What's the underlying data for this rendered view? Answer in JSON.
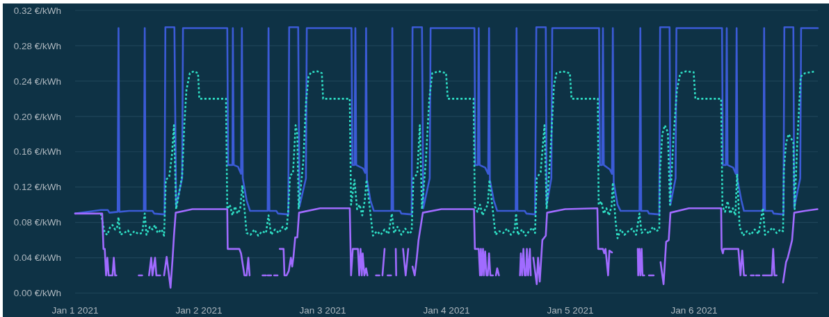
{
  "chart_data": {
    "type": "line",
    "xlim": [
      "2021-01-01T00:00",
      "2021-01-07T00:00"
    ],
    "xticks": [
      {
        "value": "2021-01-01",
        "label": "Jan 1 2021"
      },
      {
        "value": "2021-01-02",
        "label": "Jan 2 2021"
      },
      {
        "value": "2021-01-03",
        "label": "Jan 3 2021"
      },
      {
        "value": "2021-01-04",
        "label": "Jan 4 2021"
      },
      {
        "value": "2021-01-05",
        "label": "Jan 5 2021"
      },
      {
        "value": "2021-01-06",
        "label": "Jan 6 2021"
      }
    ],
    "ylim": [
      0,
      0.32
    ],
    "yticks": [
      {
        "value": 0,
        "label": "0.00 €/kWh"
      },
      {
        "value": 0.04,
        "label": "0.04 €/kWh"
      },
      {
        "value": 0.08,
        "label": "0.08 €/kWh"
      },
      {
        "value": 0.12,
        "label": "0.12 €/kWh"
      },
      {
        "value": 0.16,
        "label": "0.16 €/kWh"
      },
      {
        "value": 0.2,
        "label": "0.20 €/kWh"
      },
      {
        "value": 0.24,
        "label": "0.24 €/kWh"
      },
      {
        "value": 0.28,
        "label": "0.28 €/kWh"
      },
      {
        "value": 0.32,
        "label": "0.32 €/kWh"
      }
    ],
    "grid": "y",
    "series": [
      {
        "color": "#3b5bd6",
        "x": [
          "2021-01-01T00:00",
          "2021-01-01T05:00",
          "2021-01-01T06:20",
          "2021-01-01T06:40",
          "2021-01-01T08:15",
          "2021-01-01T08:25",
          "2021-01-01T08:35",
          "2021-01-01T10:30",
          "2021-01-01T13:20",
          "2021-01-01T13:30",
          "2021-01-01T13:40",
          "2021-01-01T15:00",
          "2021-01-01T15:20",
          "2021-01-01T17:20",
          "2021-01-01T17:30",
          "2021-01-01T19:15",
          "2021-01-01T19:35",
          "2021-01-01T20:45",
          "2021-01-01T20:55",
          "2021-01-02T05:30",
          "2021-01-02T05:40",
          "2021-01-02T06:30",
          "2021-01-02T06:35",
          "2021-01-02T06:45",
          "2021-01-02T07:35",
          "2021-01-02T08:10",
          "2021-01-02T08:20",
          "2021-01-02T08:30",
          "2021-01-02T09:15",
          "2021-01-02T09:55",
          "2021-01-02T13:20",
          "2021-01-02T13:30",
          "2021-01-02T13:40",
          "2021-01-02T15:00",
          "2021-01-02T15:20",
          "2021-01-02T17:20",
          "2021-01-02T17:30",
          "2021-01-02T19:15",
          "2021-01-02T19:30",
          "2021-01-02T20:45",
          "2021-01-02T20:55",
          "2021-01-03T05:35",
          "2021-01-03T05:45",
          "2021-01-03T06:10",
          "2021-01-03T06:20",
          "2021-01-03T06:30",
          "2021-01-03T07:50",
          "2021-01-03T08:15",
          "2021-01-03T08:25",
          "2021-01-03T08:35",
          "2021-01-03T09:15",
          "2021-01-03T09:55",
          "2021-01-03T13:20",
          "2021-01-03T13:30",
          "2021-01-03T13:40",
          "2021-01-03T15:00",
          "2021-01-03T15:15",
          "2021-01-03T17:15",
          "2021-01-03T17:25",
          "2021-01-03T19:15",
          "2021-01-03T19:30",
          "2021-01-03T20:45",
          "2021-01-03T20:55",
          "2021-01-04T05:25",
          "2021-01-04T05:35",
          "2021-01-04T06:05",
          "2021-01-04T06:15",
          "2021-01-04T06:25",
          "2021-01-04T07:30",
          "2021-01-04T08:05",
          "2021-01-04T08:15",
          "2021-01-04T08:25",
          "2021-01-04T09:10",
          "2021-01-04T09:50",
          "2021-01-04T13:25",
          "2021-01-04T13:35",
          "2021-01-04T13:45",
          "2021-01-04T15:10",
          "2021-01-04T15:30",
          "2021-01-04T17:10",
          "2021-01-04T17:25",
          "2021-01-04T19:15",
          "2021-01-04T19:25",
          "2021-01-04T20:20",
          "2021-01-04T20:30",
          "2021-01-05T05:35",
          "2021-01-05T05:45",
          "2021-01-05T06:10",
          "2021-01-05T06:20",
          "2021-01-05T06:30",
          "2021-01-05T07:40",
          "2021-01-05T08:05",
          "2021-01-05T08:15",
          "2021-01-05T08:25",
          "2021-01-05T09:10",
          "2021-01-05T09:45",
          "2021-01-05T13:25",
          "2021-01-05T13:35",
          "2021-01-05T13:45",
          "2021-01-05T15:00",
          "2021-01-05T15:15",
          "2021-01-05T17:15",
          "2021-01-05T17:25",
          "2021-01-05T19:15",
          "2021-01-05T19:25",
          "2021-01-05T20:25",
          "2021-01-05T20:35",
          "2021-01-06T05:25",
          "2021-01-06T05:35",
          "2021-01-06T06:10",
          "2021-01-06T06:20",
          "2021-01-06T06:30",
          "2021-01-06T07:35",
          "2021-01-06T08:05",
          "2021-01-06T08:15",
          "2021-01-06T08:25",
          "2021-01-06T09:10",
          "2021-01-06T09:40",
          "2021-01-06T13:25",
          "2021-01-06T13:35",
          "2021-01-06T13:45",
          "2021-01-06T15:10",
          "2021-01-06T15:25",
          "2021-01-06T17:20",
          "2021-01-06T17:30",
          "2021-01-06T19:15",
          "2021-01-06T19:25",
          "2021-01-06T20:35",
          "2021-01-06T20:45",
          "2021-01-07T00:00"
        ],
        "values": [
          0.09,
          0.094,
          0.094,
          0.091,
          0.092,
          0.3,
          0.092,
          0.093,
          0.093,
          0.3,
          0.093,
          0.093,
          0.09,
          0.089,
          0.301,
          0.301,
          0.098,
          0.13,
          0.3,
          0.3,
          0.145,
          0.145,
          0.3,
          0.145,
          0.143,
          0.135,
          0.3,
          0.13,
          0.105,
          0.093,
          0.093,
          0.3,
          0.093,
          0.093,
          0.09,
          0.089,
          0.301,
          0.301,
          0.098,
          0.13,
          0.3,
          0.3,
          0.145,
          0.145,
          0.3,
          0.145,
          0.141,
          0.136,
          0.3,
          0.128,
          0.105,
          0.093,
          0.093,
          0.3,
          0.093,
          0.093,
          0.09,
          0.089,
          0.301,
          0.301,
          0.096,
          0.13,
          0.3,
          0.3,
          0.145,
          0.145,
          0.3,
          0.145,
          0.142,
          0.135,
          0.3,
          0.128,
          0.105,
          0.093,
          0.093,
          0.3,
          0.093,
          0.093,
          0.09,
          0.089,
          0.301,
          0.301,
          0.1,
          0.13,
          0.3,
          0.3,
          0.145,
          0.145,
          0.3,
          0.145,
          0.14,
          0.135,
          0.3,
          0.125,
          0.1,
          0.093,
          0.093,
          0.3,
          0.093,
          0.093,
          0.09,
          0.089,
          0.301,
          0.301,
          0.1,
          0.13,
          0.3,
          0.3,
          0.145,
          0.145,
          0.3,
          0.145,
          0.142,
          0.135,
          0.3,
          0.128,
          0.105,
          0.093,
          0.093,
          0.3,
          0.093,
          0.093,
          0.09,
          0.089,
          0.301,
          0.301,
          0.097,
          0.13,
          0.3,
          0.3
        ]
      },
      {
        "color": "#2fe0c6",
        "line_style": "dotted",
        "x": [
          "2021-01-01T05:00",
          "2021-01-01T05:45",
          "2021-01-01T06:15",
          "2021-01-01T06:45",
          "2021-01-01T07:15",
          "2021-01-01T07:45",
          "2021-01-01T08:10",
          "2021-01-01T08:25",
          "2021-01-01T08:45",
          "2021-01-01T09:30",
          "2021-01-01T10:15",
          "2021-01-01T10:45",
          "2021-01-01T11:30",
          "2021-01-01T12:15",
          "2021-01-01T13:00",
          "2021-01-01T13:30",
          "2021-01-01T13:50",
          "2021-01-01T14:30",
          "2021-01-01T15:00",
          "2021-01-01T15:30",
          "2021-01-01T16:00",
          "2021-01-01T16:45",
          "2021-01-01T17:15",
          "2021-01-01T17:35",
          "2021-01-01T18:15",
          "2021-01-01T18:45",
          "2021-01-01T19:10",
          "2021-01-01T19:35",
          "2021-01-01T20:45",
          "2021-01-01T21:10",
          "2021-01-01T21:35",
          "2021-01-01T22:15",
          "2021-01-01T23:00",
          "2021-01-01T23:50",
          "2021-01-02T00:05",
          "2021-01-02T05:15",
          "2021-01-02T05:30",
          "2021-01-02T06:00",
          "2021-01-02T06:30",
          "2021-01-02T07:00",
          "2021-01-02T07:30",
          "2021-01-02T08:00",
          "2021-01-02T08:25",
          "2021-01-02T09:15",
          "2021-01-02T10:00",
          "2021-01-02T10:45",
          "2021-01-02T11:30",
          "2021-01-02T12:15",
          "2021-01-02T13:00",
          "2021-01-02T13:30",
          "2021-01-02T14:00",
          "2021-01-02T14:45",
          "2021-01-02T15:30",
          "2021-01-02T16:15",
          "2021-01-02T17:00",
          "2021-01-02T17:20",
          "2021-01-02T17:40",
          "2021-01-02T18:15",
          "2021-01-02T18:45",
          "2021-01-02T19:05",
          "2021-01-02T19:20",
          "2021-01-02T20:15",
          "2021-01-02T20:45",
          "2021-01-02T21:15",
          "2021-01-02T21:45",
          "2021-01-02T23:00",
          "2021-01-02T23:50",
          "2021-01-03T00:05",
          "2021-01-03T05:15",
          "2021-01-03T05:30",
          "2021-01-03T06:10",
          "2021-01-03T06:40",
          "2021-01-03T07:10",
          "2021-01-03T07:40",
          "2021-01-03T08:10",
          "2021-01-03T08:30",
          "2021-01-03T09:45",
          "2021-01-03T10:30",
          "2021-01-03T11:15",
          "2021-01-03T12:00",
          "2021-01-03T12:45",
          "2021-01-03T13:25",
          "2021-01-03T13:50",
          "2021-01-03T14:30",
          "2021-01-03T15:15",
          "2021-01-03T16:00",
          "2021-01-03T16:45",
          "2021-01-03T17:15",
          "2021-01-03T17:35",
          "2021-01-03T18:20",
          "2021-01-03T18:50",
          "2021-01-03T19:15",
          "2021-01-03T20:00",
          "2021-01-03T20:40",
          "2021-01-03T21:15",
          "2021-01-03T22:30",
          "2021-01-03T23:55",
          "2021-01-04T00:15",
          "2021-01-04T05:15",
          "2021-01-04T05:30",
          "2021-01-04T06:00",
          "2021-01-04T06:30",
          "2021-01-04T07:00",
          "2021-01-04T07:30",
          "2021-01-04T08:00",
          "2021-01-04T08:20",
          "2021-01-04T09:30",
          "2021-01-04T10:15",
          "2021-01-04T11:00",
          "2021-01-04T11:45",
          "2021-01-04T12:30",
          "2021-01-04T13:10",
          "2021-01-04T13:30",
          "2021-01-04T13:50",
          "2021-01-04T14:40",
          "2021-01-04T15:20",
          "2021-01-04T16:00",
          "2021-01-04T16:40",
          "2021-01-04T17:10",
          "2021-01-04T17:30",
          "2021-01-04T18:15",
          "2021-01-04T19:00",
          "2021-01-04T19:25",
          "2021-01-04T20:10",
          "2021-01-04T20:50",
          "2021-01-04T21:20",
          "2021-01-04T22:30",
          "2021-01-04T23:55",
          "2021-01-05T00:15",
          "2021-01-05T05:20",
          "2021-01-05T05:30",
          "2021-01-05T06:00",
          "2021-01-05T06:30",
          "2021-01-05T07:00",
          "2021-01-05T07:30",
          "2021-01-05T08:00",
          "2021-01-05T08:15",
          "2021-01-05T08:45",
          "2021-01-05T09:10",
          "2021-01-05T09:45",
          "2021-01-05T10:30",
          "2021-01-05T11:15",
          "2021-01-05T12:00",
          "2021-01-05T12:45",
          "2021-01-05T13:25",
          "2021-01-05T13:50",
          "2021-01-05T14:30",
          "2021-01-05T15:15",
          "2021-01-05T16:00",
          "2021-01-05T16:40",
          "2021-01-05T17:15",
          "2021-01-05T17:25",
          "2021-01-05T17:50",
          "2021-01-05T18:20",
          "2021-01-05T18:55",
          "2021-01-05T19:20",
          "2021-01-05T20:00",
          "2021-01-05T20:40",
          "2021-01-05T21:20",
          "2021-01-05T22:30",
          "2021-01-05T23:55",
          "2021-01-06T00:15",
          "2021-01-06T05:15",
          "2021-01-06T05:30",
          "2021-01-06T06:00",
          "2021-01-06T06:30",
          "2021-01-06T07:00",
          "2021-01-06T07:30",
          "2021-01-06T08:00",
          "2021-01-06T08:20",
          "2021-01-06T08:50",
          "2021-01-06T09:30",
          "2021-01-06T10:15",
          "2021-01-06T11:00",
          "2021-01-06T11:45",
          "2021-01-06T12:30",
          "2021-01-06T13:20",
          "2021-01-06T13:45",
          "2021-01-06T14:30",
          "2021-01-06T15:15",
          "2021-01-06T16:00",
          "2021-01-06T16:45",
          "2021-01-06T17:15",
          "2021-01-06T17:25",
          "2021-01-06T17:50",
          "2021-01-06T18:20",
          "2021-01-06T18:50",
          "2021-01-06T19:15",
          "2021-01-06T19:30",
          "2021-01-06T20:00",
          "2021-01-06T20:40",
          "2021-01-06T21:30",
          "2021-01-06T22:30",
          "2021-01-06T23:30"
        ],
        "values": [
          0.09,
          0.068,
          0.066,
          0.074,
          0.077,
          0.072,
          0.075,
          0.086,
          0.066,
          0.068,
          0.071,
          0.066,
          0.07,
          0.067,
          0.068,
          0.09,
          0.066,
          0.075,
          0.072,
          0.077,
          0.068,
          0.072,
          0.065,
          0.128,
          0.132,
          0.155,
          0.19,
          0.095,
          0.133,
          0.19,
          0.23,
          0.249,
          0.251,
          0.249,
          0.22,
          0.22,
          0.095,
          0.1,
          0.088,
          0.098,
          0.09,
          0.095,
          0.122,
          0.068,
          0.066,
          0.072,
          0.065,
          0.07,
          0.068,
          0.088,
          0.066,
          0.072,
          0.068,
          0.075,
          0.071,
          0.095,
          0.133,
          0.136,
          0.19,
          0.18,
          0.095,
          0.15,
          0.215,
          0.245,
          0.25,
          0.251,
          0.249,
          0.22,
          0.22,
          0.1,
          0.128,
          0.095,
          0.1,
          0.088,
          0.105,
          0.128,
          0.065,
          0.07,
          0.066,
          0.072,
          0.067,
          0.09,
          0.068,
          0.075,
          0.066,
          0.073,
          0.067,
          0.07,
          0.13,
          0.135,
          0.19,
          0.095,
          0.15,
          0.22,
          0.249,
          0.251,
          0.249,
          0.22,
          0.22,
          0.098,
          0.092,
          0.1,
          0.088,
          0.095,
          0.1,
          0.128,
          0.066,
          0.07,
          0.068,
          0.073,
          0.066,
          0.07,
          0.09,
          0.066,
          0.072,
          0.065,
          0.07,
          0.074,
          0.068,
          0.13,
          0.137,
          0.19,
          0.095,
          0.16,
          0.235,
          0.249,
          0.251,
          0.249,
          0.22,
          0.22,
          0.1,
          0.104,
          0.09,
          0.096,
          0.088,
          0.098,
          0.125,
          0.083,
          0.062,
          0.072,
          0.066,
          0.07,
          0.073,
          0.066,
          0.09,
          0.068,
          0.072,
          0.067,
          0.075,
          0.07,
          0.072,
          0.14,
          0.18,
          0.19,
          0.182,
          0.1,
          0.175,
          0.23,
          0.249,
          0.251,
          0.25,
          0.22,
          0.22,
          0.098,
          0.092,
          0.104,
          0.09,
          0.096,
          0.088,
          0.135,
          0.075,
          0.065,
          0.07,
          0.066,
          0.072,
          0.067,
          0.096,
          0.066,
          0.07,
          0.074,
          0.068,
          0.072,
          0.07,
          0.14,
          0.17,
          0.18,
          0.175,
          0.17,
          0.095,
          0.17,
          0.245,
          0.249,
          0.25,
          0.251
        ]
      },
      {
        "color": "#a06bff",
        "x": [
          "2021-01-01T00:00",
          "2021-01-01T05:15",
          "2021-01-01T05:30",
          "2021-01-01T05:45",
          "2021-01-01T06:00",
          "2021-01-01T06:15",
          "2021-01-01T06:30",
          "2021-01-01T07:15",
          "2021-01-01T07:30",
          "2021-01-01T07:45",
          "2021-01-01T08:00",
          "2021-01-01T08:10",
          "2021-01-01T12:20",
          "2021-01-01T13:00",
          "2021-01-01T13:10",
          "2021-01-01T14:20",
          "2021-01-01T14:45",
          "2021-01-01T15:00",
          "2021-01-01T15:30",
          "2021-01-01T15:45",
          "2021-01-01T16:30",
          "2021-01-01T16:50",
          "2021-01-01T17:15",
          "2021-01-01T17:45",
          "2021-01-01T18:30",
          "2021-01-01T18:55",
          "2021-01-01T19:10",
          "2021-01-01T19:30",
          "2021-01-01T22:45",
          "2021-01-02T05:30",
          "2021-01-02T05:35",
          "2021-01-02T07:50",
          "2021-01-02T08:10",
          "2021-01-02T08:50",
          "2021-01-02T09:15",
          "2021-01-02T09:35",
          "2021-01-02T09:50",
          "2021-01-02T10:05",
          "2021-01-02T12:20",
          "2021-01-02T13:00",
          "2021-01-02T13:05",
          "2021-01-02T13:20",
          "2021-01-02T14:00",
          "2021-01-02T14:10",
          "2021-01-02T14:35",
          "2021-01-02T15:15",
          "2021-01-02T15:20",
          "2021-01-02T15:40",
          "2021-01-02T16:25",
          "2021-01-02T16:35",
          "2021-01-02T17:00",
          "2021-01-02T17:25",
          "2021-01-02T17:50",
          "2021-01-02T18:05",
          "2021-01-02T18:20",
          "2021-01-02T18:40",
          "2021-01-02T19:05",
          "2021-01-02T19:25",
          "2021-01-02T23:30",
          "2021-01-03T05:15",
          "2021-01-03T05:30",
          "2021-01-03T05:50",
          "2021-01-03T06:50",
          "2021-01-03T07:05",
          "2021-01-03T07:20",
          "2021-01-03T07:35",
          "2021-01-03T07:45",
          "2021-01-03T08:05",
          "2021-01-03T08:25",
          "2021-01-03T08:40",
          "2021-01-03T09:00",
          "2021-01-03T10:20",
          "2021-01-03T11:00",
          "2021-01-03T11:10",
          "2021-01-03T11:35",
          "2021-01-03T12:00",
          "2021-01-03T12:20",
          "2021-01-03T12:35",
          "2021-01-03T13:15",
          "2021-01-03T13:30",
          "2021-01-03T14:10",
          "2021-01-03T14:15",
          "2021-01-03T14:45",
          "2021-01-03T15:35",
          "2021-01-03T16:05",
          "2021-01-03T16:35",
          "2021-01-03T17:00",
          "2021-01-03T17:25",
          "2021-01-03T17:50",
          "2021-01-03T18:15",
          "2021-01-03T18:35",
          "2021-01-03T19:25",
          "2021-01-03T23:00",
          "2021-01-04T05:20",
          "2021-01-04T05:30",
          "2021-01-04T06:15",
          "2021-01-04T06:30",
          "2021-01-04T06:40",
          "2021-01-04T06:50",
          "2021-01-04T07:05",
          "2021-01-04T07:15",
          "2021-01-04T07:30",
          "2021-01-04T07:45",
          "2021-01-04T08:00",
          "2021-01-04T08:15",
          "2021-01-04T08:30",
          "2021-01-04T09:00",
          "2021-01-04T09:20",
          "2021-01-04T09:35",
          "2021-01-04T09:50",
          "2021-01-04T10:10",
          "2021-01-04T10:30",
          "2021-01-04T14:15",
          "2021-01-04T14:25",
          "2021-01-04T14:40",
          "2021-01-04T14:55",
          "2021-01-04T15:10",
          "2021-01-04T15:25",
          "2021-01-04T15:35",
          "2021-01-04T15:50",
          "2021-01-04T16:10",
          "2021-01-04T16:20",
          "2021-01-04T16:35",
          "2021-01-04T16:50",
          "2021-01-04T17:30",
          "2021-01-04T17:45",
          "2021-01-04T18:05",
          "2021-01-04T18:35",
          "2021-01-04T19:15",
          "2021-01-04T19:30",
          "2021-01-04T23:00",
          "2021-01-05T05:15",
          "2021-01-05T05:25",
          "2021-01-05T06:20",
          "2021-01-05T06:35",
          "2021-01-05T06:50",
          "2021-01-05T07:20",
          "2021-01-05T07:35",
          "2021-01-05T08:05",
          "2021-01-05T08:20",
          "2021-01-05T13:05",
          "2021-01-05T13:10",
          "2021-01-05T13:25",
          "2021-01-05T13:35",
          "2021-01-05T13:50",
          "2021-01-05T14:00",
          "2021-01-05T14:20",
          "2021-01-05T14:40",
          "2021-01-05T15:15",
          "2021-01-05T16:10",
          "2021-01-05T16:30",
          "2021-01-05T17:30",
          "2021-01-05T18:05",
          "2021-01-05T18:35",
          "2021-01-05T19:05",
          "2021-01-05T19:25",
          "2021-01-05T23:00",
          "2021-01-06T05:15",
          "2021-01-06T05:20",
          "2021-01-06T05:35",
          "2021-01-06T05:45",
          "2021-01-06T08:35",
          "2021-01-06T09:00",
          "2021-01-06T09:20",
          "2021-01-06T09:40",
          "2021-01-06T10:05",
          "2021-01-06T10:30",
          "2021-01-06T11:00",
          "2021-01-06T11:35",
          "2021-01-06T11:45",
          "2021-01-06T12:00",
          "2021-01-06T12:40",
          "2021-01-06T12:50",
          "2021-01-06T13:20",
          "2021-01-06T15:05",
          "2021-01-06T15:20",
          "2021-01-06T15:35",
          "2021-01-06T16:00",
          "2021-01-06T16:30",
          "2021-01-06T17:15",
          "2021-01-06T17:50",
          "2021-01-06T18:10",
          "2021-01-06T18:35",
          "2021-01-06T19:00",
          "2021-01-06T19:25",
          "2021-01-06T21:30",
          "2021-01-06T23:55"
        ],
        "values": [
          0.09,
          0.09,
          0.05,
          0.05,
          0.02,
          0.04,
          0.02,
          0.02,
          0.04,
          0.02,
          0.02,
          null,
          0.02,
          0.02,
          null,
          0.02,
          0.04,
          0.02,
          0.04,
          0.02,
          0.02,
          null,
          0.02,
          0.041,
          0.006,
          0.041,
          0.065,
          0.091,
          0.095,
          0.095,
          0.05,
          0.05,
          0.045,
          0.02,
          0.02,
          0.04,
          0.02,
          null,
          0.02,
          0.02,
          null,
          0.02,
          0.02,
          null,
          0.02,
          0.02,
          null,
          0.05,
          0.05,
          0.02,
          0.02,
          0.025,
          0.04,
          0.03,
          0.041,
          0.063,
          0.063,
          0.091,
          0.096,
          0.096,
          0.02,
          0.05,
          0.05,
          0.02,
          0.05,
          0.02,
          0.045,
          0.02,
          0.028,
          0.02,
          null,
          0.02,
          0.02,
          null,
          0.02,
          0.05,
          null,
          0.02,
          0.02,
          null,
          0.05,
          0.02,
          null,
          0.05,
          0.02,
          0.05,
          null,
          0.03,
          0.02,
          0.04,
          0.06,
          0.091,
          0.095,
          0.095,
          0.05,
          0.05,
          0.02,
          0.05,
          0.02,
          0.05,
          0.02,
          0.047,
          0.02,
          0.02,
          0.045,
          0.02,
          0.02,
          null,
          0.02,
          0.028,
          0.02,
          null,
          0.02,
          0.045,
          0.02,
          0.05,
          0.02,
          0.02,
          0.05,
          0.02,
          0.05,
          0.02,
          null,
          0.04,
          0.01,
          0.04,
          0.013,
          0.06,
          0.065,
          0.091,
          0.095,
          0.096,
          0.05,
          0.05,
          0.045,
          0.05,
          0.02,
          0.048,
          0.046,
          null,
          0.05,
          0.02,
          0.05,
          0.02,
          0.05,
          0.02,
          0.02,
          null,
          0.02,
          0.02,
          null,
          0.035,
          0.01,
          0.058,
          0.06,
          0.091,
          0.096,
          0.096,
          0.05,
          0.045,
          0.05,
          0.05,
          0.02,
          0.048,
          0.02,
          0.02,
          null,
          0.02,
          0.02,
          null,
          0.02,
          0.02,
          null,
          0.02,
          0.02,
          0.05,
          0.02,
          0.02,
          null,
          0.012,
          0.035,
          0.04,
          0.05,
          0.06,
          0.091,
          0.093,
          0.095
        ]
      }
    ]
  }
}
